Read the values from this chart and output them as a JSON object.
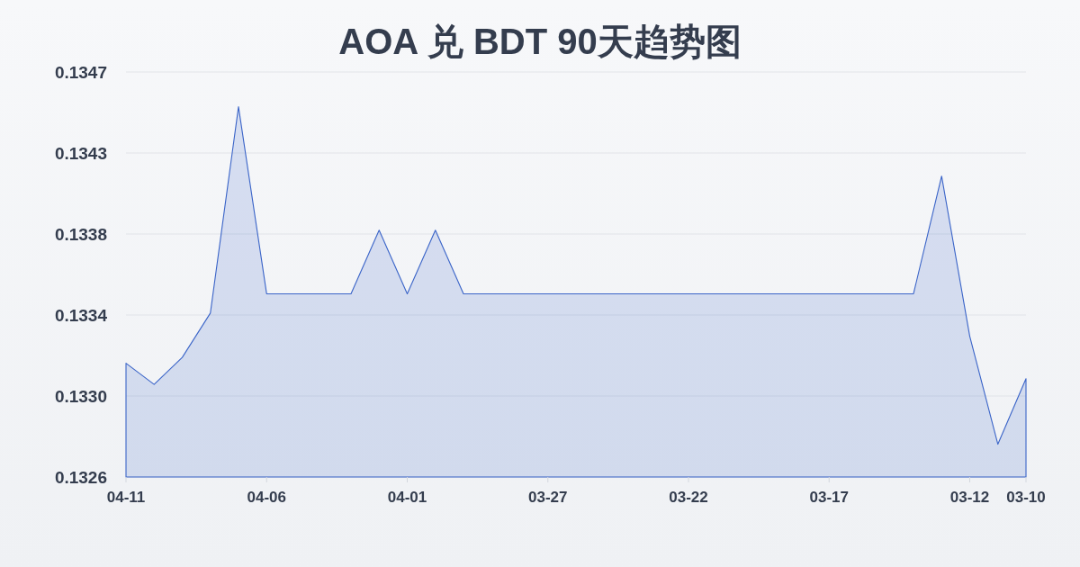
{
  "chart_data": {
    "type": "area",
    "title": "AOA 兑 BDT 90天趋势图",
    "x": [
      "--04-11",
      "--04-10",
      "--04-09",
      "--04-08",
      "--04-07",
      "--04-06",
      "--04-05",
      "--04-04",
      "--04-03",
      "--04-02",
      "--04-01",
      "--03-31",
      "--03-30",
      "--03-29",
      "--03-28",
      "--03-27",
      "--03-26",
      "--03-25",
      "--03-24",
      "--03-23",
      "--03-22",
      "--03-21",
      "--03-20",
      "--03-19",
      "--03-18",
      "--03-17",
      "--03-16",
      "--03-15",
      "--03-14",
      "--03-13",
      "--03-12",
      "--03-11",
      "--03-10"
    ],
    "values": [
      0.13317,
      0.13306,
      0.1332,
      0.13343,
      0.1345,
      0.13353,
      0.13353,
      0.13353,
      0.13353,
      0.13386,
      0.13353,
      0.13386,
      0.13353,
      0.13353,
      0.13353,
      0.13353,
      0.13353,
      0.13353,
      0.13353,
      0.13353,
      0.13353,
      0.13353,
      0.13353,
      0.13353,
      0.13353,
      0.13353,
      0.13353,
      0.13353,
      0.13353,
      0.13414,
      0.13331,
      0.13275,
      0.13309
    ],
    "color": "#3a64c8",
    "xlim": [
      "--04-11",
      "--03-10"
    ],
    "xticks": [
      {
        "value": "--04-11",
        "label": "04-11"
      },
      {
        "value": "--04-06",
        "label": "04-06"
      },
      {
        "value": "--04-01",
        "label": "04-01"
      },
      {
        "value": "--03-27",
        "label": "03-27"
      },
      {
        "value": "--03-22",
        "label": "03-22"
      },
      {
        "value": "--03-17",
        "label": "03-17"
      },
      {
        "value": "--03-12",
        "label": "03-12"
      },
      {
        "value": "--03-10",
        "label": "03-10"
      }
    ],
    "ylim": [
      0.13258,
      0.13468
    ],
    "yticks": [
      {
        "value": 0.13258,
        "label": "0.1326"
      },
      {
        "value": 0.133,
        "label": "0.1330"
      },
      {
        "value": 0.13342,
        "label": "0.1334"
      },
      {
        "value": 0.13384,
        "label": "0.1338"
      },
      {
        "value": 0.13426,
        "label": "0.1343"
      },
      {
        "value": 0.13468,
        "label": "0.1347"
      }
    ],
    "grid": "y"
  }
}
